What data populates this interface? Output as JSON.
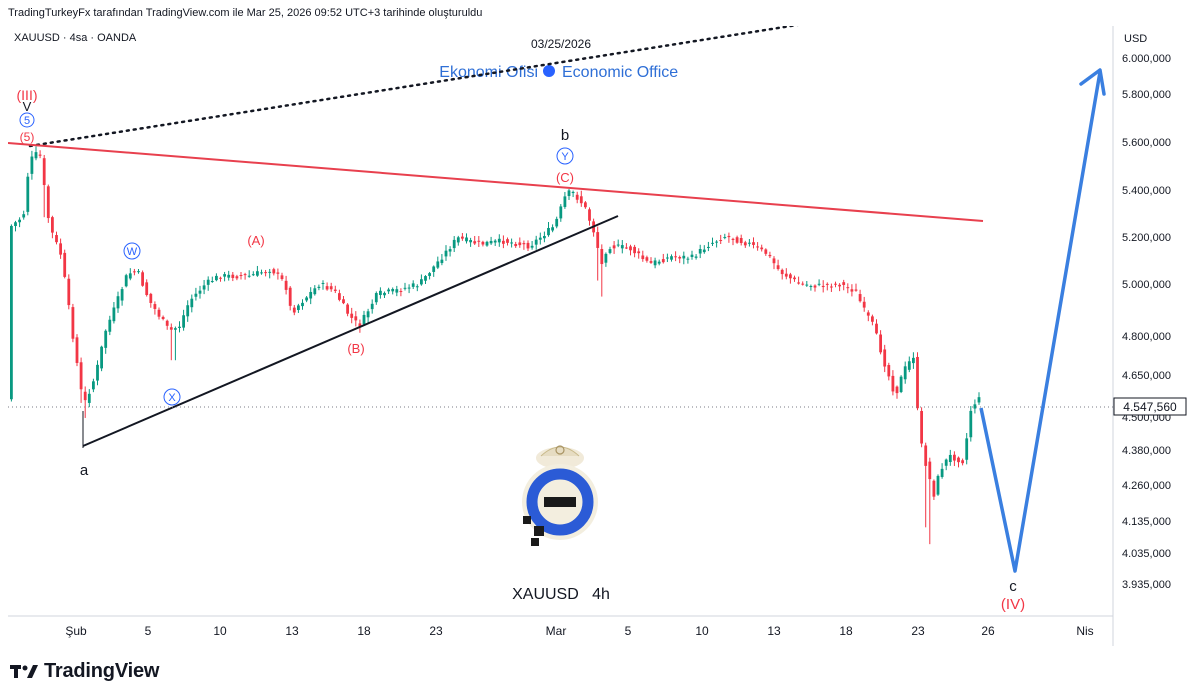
{
  "attribution": "TradingTurkeyFx tarafından TradingView.com ile Mar 25, 2026 09:52 UTC+3 tarihinde oluşturuldu",
  "symbol_line": "XAUUSD · 4sa · OANDA",
  "date_label": "03/25/2026",
  "watermark": {
    "left": "Ekonomi Ofisi",
    "right": "Economic Office",
    "dot_color": "#2962ff",
    "color": "#2f6fd6"
  },
  "center_label": "XAUUSD   4h",
  "currency": "USD",
  "footer_brand": "TradingView",
  "logo": {
    "name": "economic-office-logo"
  },
  "chart_data": {
    "type": "candlestick",
    "price_axis_ticks": [
      "6.000,000",
      "5.800,000",
      "5.600,000",
      "5.400,000",
      "5.200,000",
      "5.000,000",
      "4.800,000",
      "4.650,000",
      "4.500,000",
      "4.380,000",
      "4.260,000",
      "4.135,000",
      "4.035,000",
      "3.935,000"
    ],
    "time_axis_ticks": [
      "Şub",
      "5",
      "10",
      "13",
      "18",
      "23",
      "Mar",
      "5",
      "10",
      "13",
      "18",
      "23",
      "26",
      "Nis"
    ],
    "current_price": "4.547,560",
    "current_price_color": "#131722",
    "up_color": "#089981",
    "down_color": "#f23645",
    "price_range": [
      3900,
      6050
    ],
    "annotations": [
      {
        "id": "iii",
        "text": "(III)",
        "color": "#f23645"
      },
      {
        "id": "v-small",
        "text": "V",
        "color": "#131722"
      },
      {
        "id": "five-circle",
        "text": "5",
        "color": "#2962ff"
      },
      {
        "id": "five-paren",
        "text": "(5)",
        "color": "#f23645"
      },
      {
        "id": "w",
        "text": "W",
        "color": "#2962ff"
      },
      {
        "id": "a-upper",
        "text": "(A)",
        "color": "#f23645"
      },
      {
        "id": "b-paren",
        "text": "(B)",
        "color": "#f23645"
      },
      {
        "id": "x",
        "text": "X",
        "color": "#2962ff"
      },
      {
        "id": "a-lower",
        "text": "a",
        "color": "#131722"
      },
      {
        "id": "b-lower",
        "text": "b",
        "color": "#131722"
      },
      {
        "id": "y",
        "text": "Y",
        "color": "#2962ff"
      },
      {
        "id": "c-paren",
        "text": "(C)",
        "color": "#f23645"
      },
      {
        "id": "c-lower",
        "text": "c",
        "color": "#131722"
      },
      {
        "id": "iv",
        "text": "(IV)",
        "color": "#f23645"
      }
    ],
    "trendline_colors": {
      "resistance": "#e8404e",
      "support": "#131722",
      "dotted": "#131722",
      "projection": "#3a7fe0"
    },
    "grid": false
  }
}
